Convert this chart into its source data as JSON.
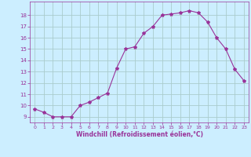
{
  "x": [
    0,
    1,
    2,
    3,
    4,
    5,
    6,
    7,
    8,
    9,
    10,
    11,
    12,
    13,
    14,
    15,
    16,
    17,
    18,
    19,
    20,
    21,
    22,
    23
  ],
  "y": [
    9.7,
    9.4,
    9.0,
    9.0,
    9.0,
    10.0,
    10.3,
    10.7,
    11.1,
    13.3,
    15.0,
    15.2,
    16.4,
    17.0,
    18.0,
    18.1,
    18.2,
    18.4,
    18.2,
    17.4,
    16.0,
    15.0,
    13.2,
    12.2
  ],
  "line_color": "#993399",
  "marker": "*",
  "marker_size": 3,
  "bg_color": "#cceeff",
  "grid_color": "#aacccc",
  "xlabel": "Windchill (Refroidissement éolien,°C)",
  "xlabel_color": "#993399",
  "tick_color": "#993399",
  "ylim": [
    8.5,
    19.2
  ],
  "xlim": [
    -0.5,
    23.5
  ],
  "yticks": [
    9,
    10,
    11,
    12,
    13,
    14,
    15,
    16,
    17,
    18
  ],
  "xticks": [
    0,
    1,
    2,
    3,
    4,
    5,
    6,
    7,
    8,
    9,
    10,
    11,
    12,
    13,
    14,
    15,
    16,
    17,
    18,
    19,
    20,
    21,
    22,
    23
  ]
}
